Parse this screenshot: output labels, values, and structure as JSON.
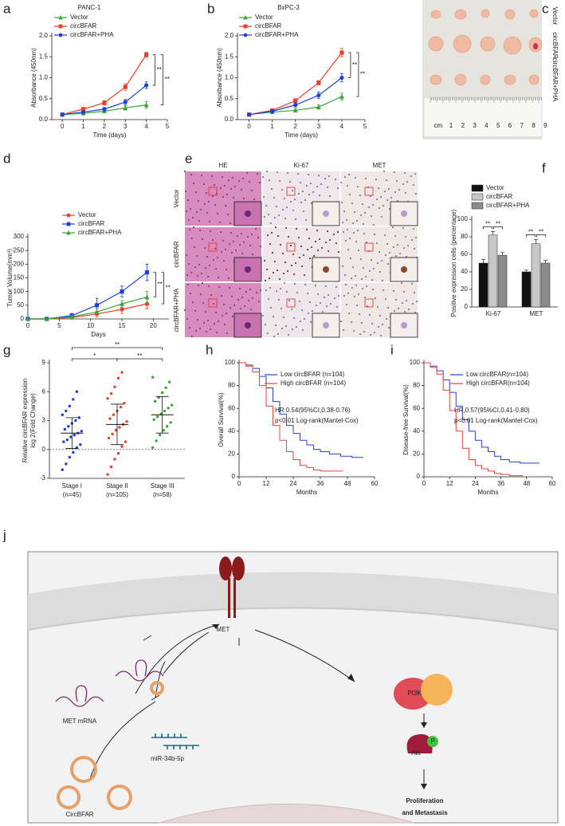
{
  "chart_data": [
    {
      "type": "line",
      "panel": "a",
      "title": "PANC-1",
      "x_label": "Time (days)",
      "y_label": "Absorbance (450nm)",
      "x": [
        0,
        1,
        2,
        3,
        4
      ],
      "xlim": [
        -0.5,
        5
      ],
      "xticks": [
        0,
        1,
        2,
        3,
        4,
        5
      ],
      "ylim": [
        0,
        2
      ],
      "yticks": [
        {
          "value": 0,
          "label": "0.0"
        },
        {
          "value": 0.5,
          "label": "0.5"
        },
        {
          "value": 1,
          "label": "1.0"
        },
        {
          "value": 1.5,
          "label": "1.5"
        },
        {
          "value": 2,
          "label": "2.0"
        }
      ],
      "series": [
        {
          "name": "Vector",
          "color": "#3aa53a",
          "marker": "triangle",
          "values": [
            0.12,
            0.15,
            0.2,
            0.28,
            0.35
          ],
          "errors": [
            0.03,
            0.03,
            0.04,
            0.05,
            0.08
          ]
        },
        {
          "name": "circBFAR",
          "color": "#e8402a",
          "marker": "square",
          "values": [
            0.12,
            0.25,
            0.4,
            0.78,
            1.55
          ],
          "errors": [
            0.03,
            0.04,
            0.05,
            0.08,
            0.06
          ]
        },
        {
          "name": "circBFAR+PHA",
          "color": "#1f3fd6",
          "marker": "circle",
          "values": [
            0.12,
            0.18,
            0.25,
            0.42,
            0.82
          ],
          "errors": [
            0.03,
            0.03,
            0.04,
            0.06,
            0.08
          ]
        }
      ],
      "annotations": [
        "**",
        "**"
      ]
    },
    {
      "type": "line",
      "panel": "b",
      "title": "BxPC-3",
      "x_label": "Time (days)",
      "y_label": "Absorbance (450nm)",
      "x": [
        0,
        1,
        2,
        3,
        4
      ],
      "xlim": [
        -0.5,
        5
      ],
      "xticks": [
        0,
        1,
        2,
        3,
        4,
        5
      ],
      "ylim": [
        0,
        2
      ],
      "yticks": [
        {
          "value": 0,
          "label": "0.0"
        },
        {
          "value": 0.5,
          "label": "0.5"
        },
        {
          "value": 1,
          "label": "1.0"
        },
        {
          "value": 1.5,
          "label": "1.5"
        },
        {
          "value": 2,
          "label": "2.0"
        }
      ],
      "series": [
        {
          "name": "Vector",
          "color": "#3aa53a",
          "marker": "triangle",
          "values": [
            0.12,
            0.18,
            0.22,
            0.3,
            0.55
          ],
          "errors": [
            0.02,
            0.03,
            0.04,
            0.05,
            0.08
          ]
        },
        {
          "name": "circBFAR",
          "color": "#e8402a",
          "marker": "square",
          "values": [
            0.12,
            0.22,
            0.45,
            0.88,
            1.6
          ],
          "errors": [
            0.02,
            0.03,
            0.05,
            0.05,
            0.1
          ]
        },
        {
          "name": "circBFAR+PHA",
          "color": "#1f3fd6",
          "marker": "circle",
          "values": [
            0.12,
            0.2,
            0.35,
            0.58,
            1.0
          ],
          "errors": [
            0.02,
            0.03,
            0.05,
            0.08,
            0.1
          ]
        }
      ],
      "annotations": [
        "**",
        "**"
      ]
    },
    {
      "type": "line",
      "panel": "d",
      "x_label": "Days",
      "y_label": "Tumor Volume(mm³)",
      "x": [
        0,
        3,
        7,
        11,
        15,
        19
      ],
      "xlim": [
        0,
        22.5
      ],
      "xticks": [
        0,
        5,
        10,
        15,
        20
      ],
      "ylim": [
        0,
        300
      ],
      "yticks": [
        0,
        50,
        100,
        150,
        200,
        250,
        300
      ],
      "series": [
        {
          "name": "Vector",
          "color": "#e8402a",
          "marker": "circle",
          "values": [
            0,
            0,
            5,
            18,
            35,
            55
          ],
          "errors": [
            0,
            0,
            3,
            10,
            15,
            18
          ]
        },
        {
          "name": "circBFAR",
          "color": "#1f3fd6",
          "marker": "square",
          "values": [
            0,
            0,
            12,
            50,
            100,
            170
          ],
          "errors": [
            0,
            0,
            8,
            25,
            20,
            30
          ]
        },
        {
          "name": "circBFAR+PHA",
          "color": "#3aa53a",
          "marker": "triangle",
          "values": [
            0,
            0,
            8,
            25,
            55,
            80
          ],
          "errors": [
            0,
            0,
            5,
            12,
            12,
            20
          ]
        }
      ],
      "annotations": [
        "**",
        "**"
      ]
    },
    {
      "type": "bar",
      "panel": "f",
      "y_label": "Positive expression cells (percentage)",
      "categories": [
        "Ki-67",
        "MET"
      ],
      "ylim": [
        0,
        100
      ],
      "yticks": [
        0,
        20,
        40,
        60,
        80,
        100
      ],
      "series": [
        {
          "name": "Vector",
          "color": "#111111",
          "values": [
            50,
            40
          ],
          "errors": [
            4,
            2
          ]
        },
        {
          "name": "circBFAR",
          "color": "#c8c8c8",
          "values": [
            82,
            72
          ],
          "errors": [
            4,
            5
          ]
        },
        {
          "name": "circBFAR+PHA",
          "color": "#8c8c8c",
          "values": [
            59,
            50
          ],
          "errors": [
            3,
            3
          ]
        }
      ],
      "annotations": [
        "**",
        "**",
        "**",
        "**"
      ]
    },
    {
      "type": "strip",
      "panel": "g",
      "y_label": [
        "Relative circBFAR expression",
        "log 2(Fold Change)"
      ],
      "categories": [
        "Stage I",
        "Stage II",
        "Stage III"
      ],
      "counts": [
        "(n=45)",
        "(n=105)",
        "(n=58)"
      ],
      "colors": [
        "#1f3fd6",
        "#e8402a",
        "#3aa53a"
      ],
      "values": [
        [
          -2.1,
          -1.5,
          -0.8,
          -0.3,
          0.2,
          0.5,
          0.8,
          1.0,
          1.3,
          1.5,
          1.7,
          1.9,
          2.1,
          2.4,
          2.7,
          3.0,
          3.3,
          3.6,
          4.0,
          4.5,
          5.2,
          6.0
        ],
        [
          -2.6,
          -1.8,
          -1.0,
          -0.4,
          0.3,
          0.8,
          1.2,
          1.6,
          2.0,
          2.3,
          2.6,
          2.9,
          3.2,
          3.6,
          4.0,
          4.4,
          4.8,
          5.3,
          5.8,
          6.5,
          7.4,
          8.0
        ],
        [
          0.2,
          0.9,
          1.5,
          2.0,
          2.4,
          2.8,
          3.1,
          3.4,
          3.7,
          4.0,
          4.3,
          4.6,
          5.0,
          5.4,
          5.9,
          6.4,
          7.0,
          7.5
        ]
      ],
      "means": [
        1.7,
        2.6,
        3.6
      ],
      "sds": [
        1.6,
        2.1,
        1.9
      ],
      "reference_line": 0,
      "ylim": [
        -3,
        9
      ],
      "yticks": [
        -3,
        0,
        3,
        6,
        9
      ],
      "annotations": [
        "*",
        "**",
        "**"
      ]
    },
    {
      "type": "line",
      "panel": "h",
      "step": true,
      "x_label": "Months",
      "y_label": "Overall Survival(%)",
      "xlim": [
        0,
        60
      ],
      "xticks": [
        0,
        12,
        24,
        36,
        48,
        60
      ],
      "ylim": [
        0,
        100
      ],
      "yticks": [
        0,
        20,
        40,
        60,
        80,
        100
      ],
      "series": [
        {
          "name": "Low circBFAR (n=104)",
          "color": "#2b3fc9",
          "x": [
            0,
            3,
            6,
            9,
            12,
            15,
            18,
            21,
            24,
            27,
            30,
            33,
            36,
            40,
            45,
            50,
            55
          ],
          "values": [
            100,
            98,
            95,
            88,
            78,
            66,
            55,
            45,
            38,
            32,
            28,
            24,
            22,
            20,
            18,
            17,
            17
          ]
        },
        {
          "name": "High circBFAR (n=104)",
          "color": "#e8453c",
          "x": [
            0,
            3,
            6,
            9,
            12,
            15,
            18,
            21,
            24,
            27,
            30,
            33,
            36,
            40,
            46
          ],
          "values": [
            100,
            97,
            92,
            80,
            62,
            45,
            32,
            22,
            15,
            10,
            8,
            6,
            5,
            5,
            5
          ]
        }
      ],
      "annotations": [
        "HR 0.54(95%CI,0.38-0.76)",
        "p<0.01 Log-rank(Mantel-Cox)"
      ]
    },
    {
      "type": "line",
      "panel": "i",
      "step": true,
      "x_label": "Months",
      "y_label": "Disease-free Survival(%)",
      "xlim": [
        0,
        60
      ],
      "xticks": [
        0,
        12,
        24,
        36,
        48,
        60
      ],
      "ylim": [
        0,
        100
      ],
      "yticks": [
        0,
        20,
        40,
        60,
        80,
        100
      ],
      "series": [
        {
          "name": "Low circBFAR(n=104)",
          "color": "#2b3fc9",
          "x": [
            0,
            3,
            6,
            9,
            12,
            15,
            18,
            21,
            24,
            27,
            30,
            33,
            36,
            40,
            45,
            50,
            54
          ],
          "values": [
            100,
            97,
            93,
            85,
            74,
            62,
            50,
            40,
            32,
            26,
            22,
            18,
            15,
            13,
            12,
            12,
            12
          ]
        },
        {
          "name": "High circBFAR(n=104)",
          "color": "#e8453c",
          "x": [
            0,
            3,
            6,
            9,
            12,
            15,
            18,
            21,
            24,
            27,
            30,
            33,
            36,
            40,
            46
          ],
          "values": [
            100,
            96,
            90,
            76,
            58,
            40,
            25,
            15,
            10,
            7,
            5,
            3,
            2,
            1,
            0
          ]
        }
      ],
      "annotations": [
        "HR,0.57(95%CI,0.41-0.80)",
        "p<0.01 Log-rank(Mantel-Cox)"
      ]
    }
  ],
  "panels": {
    "c": {
      "label": "c",
      "rows": [
        "Vector",
        "circBFAR",
        "circBFAR+PHA"
      ],
      "ruler_unit": "cm",
      "ruler_marks": [
        1,
        2,
        3,
        4,
        5,
        6,
        7,
        8,
        9
      ]
    },
    "e": {
      "label": "e",
      "columns": [
        "HE",
        "Ki-67",
        "MET"
      ],
      "rows": [
        "Vector",
        "circBFAR",
        "circBFAR+PHA"
      ]
    },
    "j": {
      "label": "j",
      "met": "MET",
      "mrna": "MET mRNA",
      "mir": "miR-34b-5p",
      "circ": "CircBFAR",
      "pi3k": "PI3K",
      "akt": "Akt",
      "p": "P",
      "outcome": [
        "Proliferation",
        "and Metastasis"
      ]
    }
  }
}
